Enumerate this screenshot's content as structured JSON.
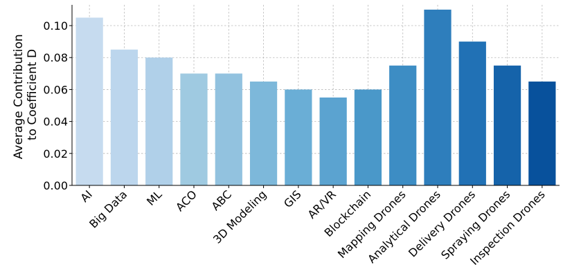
{
  "chart_data": {
    "type": "bar",
    "categories": [
      "AI",
      "Big Data",
      "ML",
      "ACO",
      "ABC",
      "3D Modeling",
      "GIS",
      "AR/VR",
      "Blockchain",
      "Mapping Drones",
      "Analytical Drones",
      "Delivery Drones",
      "Spraying Drones",
      "Inspection Drones"
    ],
    "values": [
      0.105,
      0.085,
      0.08,
      0.07,
      0.07,
      0.065,
      0.06,
      0.055,
      0.06,
      0.075,
      0.11,
      0.09,
      0.075,
      0.065
    ],
    "ylabel_lines": [
      "Average Contribution",
      "to Coefficient D"
    ],
    "ylim": [
      0,
      0.113
    ],
    "yticks": [
      0.0,
      0.02,
      0.04,
      0.06,
      0.08,
      0.1
    ],
    "ytick_labels": [
      "0.00",
      "0.02",
      "0.04",
      "0.06",
      "0.08",
      "0.10"
    ],
    "grid": true,
    "colors": [
      "#c6dbef",
      "#bcd6ed",
      "#b0d0e9",
      "#9fcae1",
      "#92c2df",
      "#7db8da",
      "#6aaed6",
      "#5ba3d0",
      "#4a98c9",
      "#3d8dc4",
      "#2e7ebc",
      "#2171b5",
      "#1563aa",
      "#08519c"
    ]
  }
}
